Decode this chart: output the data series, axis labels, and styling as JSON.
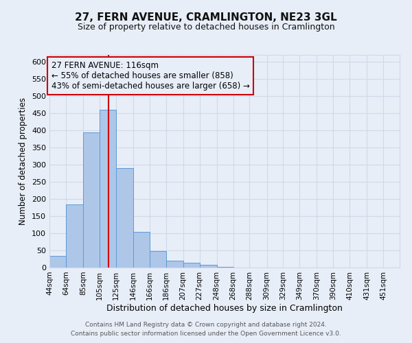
{
  "title": "27, FERN AVENUE, CRAMLINGTON, NE23 3GL",
  "subtitle": "Size of property relative to detached houses in Cramlington",
  "xlabel": "Distribution of detached houses by size in Cramlington",
  "ylabel": "Number of detached properties",
  "footnote1": "Contains HM Land Registry data © Crown copyright and database right 2024.",
  "footnote2": "Contains public sector information licensed under the Open Government Licence v3.0.",
  "bin_labels": [
    "44sqm",
    "64sqm",
    "85sqm",
    "105sqm",
    "125sqm",
    "146sqm",
    "166sqm",
    "186sqm",
    "207sqm",
    "227sqm",
    "248sqm",
    "268sqm",
    "288sqm",
    "309sqm",
    "329sqm",
    "349sqm",
    "370sqm",
    "390sqm",
    "410sqm",
    "431sqm",
    "451sqm"
  ],
  "bin_edges": [
    44,
    64,
    85,
    105,
    125,
    146,
    166,
    186,
    207,
    227,
    248,
    268,
    288,
    309,
    329,
    349,
    370,
    390,
    410,
    431,
    451,
    471
  ],
  "bar_values": [
    35,
    185,
    395,
    460,
    290,
    105,
    48,
    20,
    15,
    8,
    2,
    1,
    0,
    0,
    0,
    0,
    0,
    0,
    0,
    0,
    0
  ],
  "bar_color": "#aec6e8",
  "bar_edgecolor": "#5b9bd5",
  "vline_x": 116,
  "vline_color": "#cc0000",
  "annotation_title": "27 FERN AVENUE: 116sqm",
  "annotation_line1": "← 55% of detached houses are smaller (858)",
  "annotation_line2": "43% of semi-detached houses are larger (658) →",
  "annotation_box_edgecolor": "#cc0000",
  "ylim": [
    0,
    620
  ],
  "yticks": [
    0,
    50,
    100,
    150,
    200,
    250,
    300,
    350,
    400,
    450,
    500,
    550,
    600
  ],
  "grid_color": "#d0d8e8",
  "bg_color": "#e8eef8"
}
